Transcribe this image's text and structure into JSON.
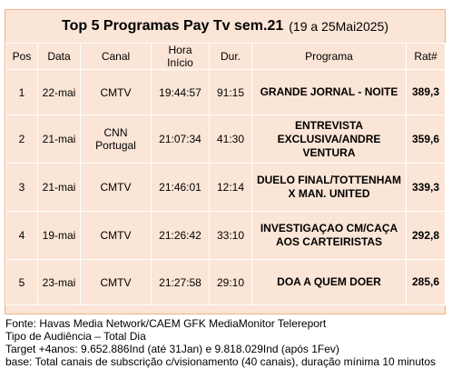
{
  "title": {
    "main": "Top 5 Programas Pay Tv sem.21",
    "sub": "(19 a 25Mai2025)"
  },
  "columns": [
    "Pos",
    "Data",
    "Canal",
    "Hora Início",
    "Dur.",
    "Programa",
    "Rat#"
  ],
  "rows": [
    {
      "pos": "1",
      "data": "22-mai",
      "canal": "CMTV",
      "hora": "19:44:57",
      "dur": "91:15",
      "programa": "GRANDE JORNAL - NOITE",
      "rat": "389,3"
    },
    {
      "pos": "2",
      "data": "21-mai",
      "canal": "CNN Portugal",
      "hora": "21:07:34",
      "dur": "41:30",
      "programa": "ENTREVISTA EXCLUSIVA/ANDRE VENTURA",
      "rat": "359,6"
    },
    {
      "pos": "3",
      "data": "21-mai",
      "canal": "CMTV",
      "hora": "21:46:01",
      "dur": "12:14",
      "programa": "DUELO FINAL/TOTTENHAM X MAN. UNITED",
      "rat": "339,3"
    },
    {
      "pos": "4",
      "data": "19-mai",
      "canal": "CMTV",
      "hora": "21:26:42",
      "dur": "33:10",
      "programa": "INVESTIGAÇAO CM/CAÇA AOS CARTEIRISTAS",
      "rat": "292,8"
    },
    {
      "pos": "5",
      "data": "23-mai",
      "canal": "CMTV",
      "hora": "21:27:58",
      "dur": "29:10",
      "programa": "DOA A QUEM DOER",
      "rat": "285,6"
    }
  ],
  "notes": [
    "Fonte: Havas Media Network/CAEM GFK MediaMonitor  Telereport",
    "Tipo de Audiência – Total Dia",
    "Target +4anos: 9.652.886Ind (até 31Jan) e 9.818.029Ind (após 1Fev)",
    "base: Total canais de subscrição c/visionamento (40 canais), duração mínima 10 minutos"
  ],
  "colors": {
    "background": "#fbe5d6",
    "border": "#f4b183"
  }
}
